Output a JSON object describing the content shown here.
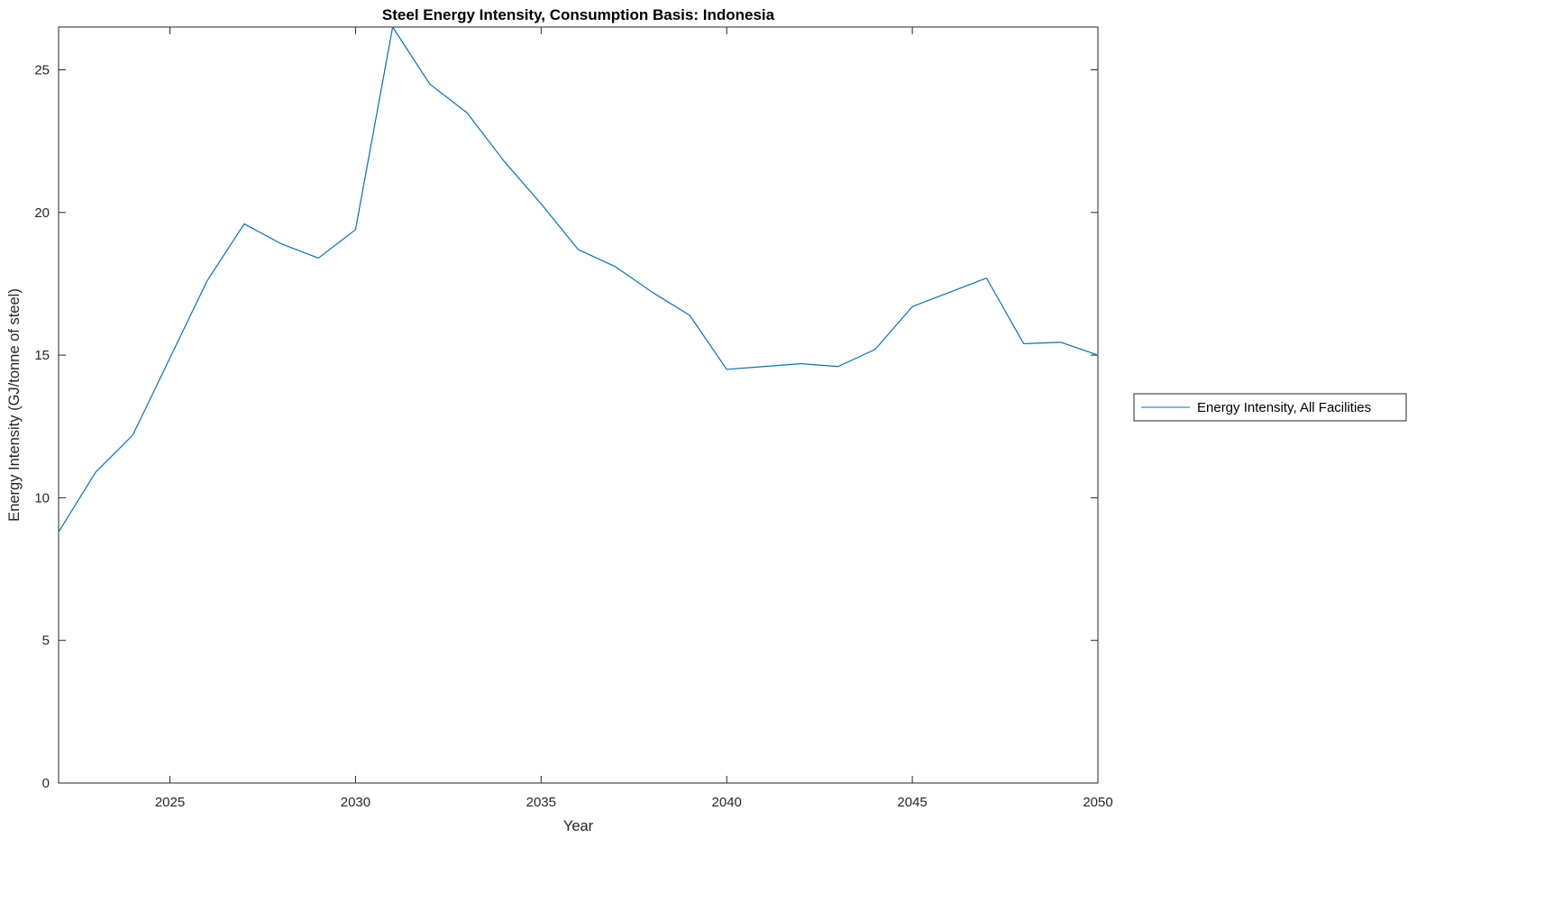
{
  "chart_data": {
    "type": "line",
    "title": "Steel Energy Intensity, Consumption Basis: Indonesia",
    "xlabel": "Year",
    "ylabel": "Energy Intensity (GJ/tonne of steel)",
    "x": [
      2022,
      2023,
      2024,
      2025,
      2026,
      2027,
      2028,
      2029,
      2030,
      2031,
      2032,
      2033,
      2034,
      2035,
      2036,
      2037,
      2038,
      2039,
      2040,
      2041,
      2042,
      2043,
      2044,
      2045,
      2046,
      2047,
      2048,
      2049,
      2050
    ],
    "series": [
      {
        "name": "Energy Intensity, All Facilities",
        "color": "#0072BD",
        "values": [
          8.8,
          10.9,
          12.2,
          14.9,
          17.6,
          19.6,
          18.9,
          18.4,
          19.4,
          26.5,
          24.5,
          23.5,
          21.8,
          20.3,
          18.7,
          18.1,
          17.2,
          16.4,
          14.5,
          14.6,
          14.7,
          14.6,
          15.2,
          16.7,
          17.2,
          17.7,
          15.4,
          15.45,
          15.0
        ]
      }
    ],
    "xlim": [
      2022,
      2050
    ],
    "ylim": [
      0,
      26.5
    ],
    "xticks": [
      2025,
      2030,
      2035,
      2040,
      2045,
      2050
    ],
    "yticks": [
      0,
      5,
      10,
      15,
      20,
      25
    ],
    "grid": false,
    "legend_position": "outside-right"
  },
  "legend": {
    "label": "Energy Intensity, All Facilities"
  }
}
